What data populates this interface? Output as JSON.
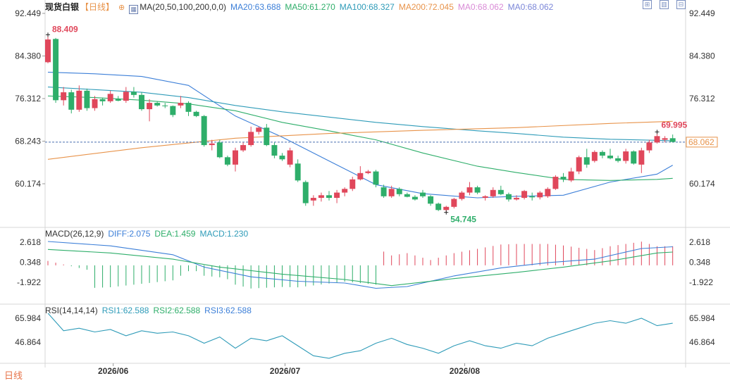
{
  "header": {
    "title": "现货白银",
    "period": "【日线】",
    "indicator_label": "MA(20,50,100,200,0,0)",
    "ma_values": [
      {
        "text": "MA20:63.688",
        "color": "#3c7fd8"
      },
      {
        "text": "MA50:61.270",
        "color": "#2eae6a"
      },
      {
        "text": "MA100:68.327",
        "color": "#2e9bb8"
      },
      {
        "text": "MA200:72.045",
        "color": "#e8934a"
      },
      {
        "text": "MA0:68.062",
        "color": "#d98ad6"
      },
      {
        "text": "MA0:68.062",
        "color": "#7b86d8"
      }
    ]
  },
  "macd": {
    "label": "MACD(26,12,9)",
    "values": [
      {
        "text": "DIFF:2.075",
        "color": "#3c7fd8"
      },
      {
        "text": "DEA:1.459",
        "color": "#2eae6a"
      },
      {
        "text": "MACD:1.230",
        "color": "#2e9bb8"
      }
    ],
    "ticks": [
      "2.618",
      "0.348",
      "-1.922"
    ]
  },
  "rsi": {
    "label": "RSI(14,14,14)",
    "values": [
      {
        "text": "RSI1:62.588",
        "color": "#2e9bb8"
      },
      {
        "text": "RSI2:62.588",
        "color": "#2eae6a"
      },
      {
        "text": "RSI3:62.588",
        "color": "#3c7fd8"
      }
    ],
    "ticks": [
      "65.984",
      "46.864"
    ]
  },
  "bottom_tab": "日线",
  "chart_data": {
    "type": "candlestick",
    "y_ticks": [
      "92.449",
      "84.380",
      "76.312",
      "68.243",
      "60.174"
    ],
    "x_labels": [
      "2026/06",
      "2026/07",
      "2026/08"
    ],
    "current_price": "68.062",
    "high_annotation": "88.409",
    "low_annotation": "54.745",
    "last_high_annotation": "69.995",
    "colors": {
      "up": "#e0475b",
      "down": "#2eae6a",
      "high_label": "#e0475b",
      "low_label": "#2eae6a",
      "price_tag": "#e8934a"
    },
    "candles": [
      [
        83.2,
        88.4,
        83.0,
        87.5
      ],
      [
        87.6,
        87.8,
        75.5,
        76.0
      ],
      [
        76.0,
        78.5,
        75.0,
        77.5
      ],
      [
        77.5,
        78.0,
        73.5,
        74.2
      ],
      [
        74.2,
        78.8,
        73.8,
        77.8
      ],
      [
        77.8,
        78.2,
        74.0,
        74.5
      ],
      [
        74.5,
        76.8,
        74.0,
        76.2
      ],
      [
        76.2,
        76.5,
        75.0,
        75.8
      ],
      [
        75.8,
        77.8,
        75.5,
        77.2
      ],
      [
        76.2,
        76.8,
        75.8,
        75.9
      ],
      [
        75.9,
        78.5,
        75.5,
        77.6
      ],
      [
        77.6,
        78.5,
        76.5,
        77.0
      ],
      [
        77.0,
        77.5,
        74.0,
        74.3
      ],
      [
        74.3,
        76.2,
        72.0,
        75.5
      ],
      [
        75.5,
        75.8,
        74.8,
        75.0
      ],
      [
        75.0,
        75.5,
        74.5,
        74.9
      ],
      [
        74.9,
        75.0,
        72.8,
        73.2
      ],
      [
        75.0,
        76.8,
        74.5,
        75.5
      ],
      [
        75.5,
        75.8,
        73.0,
        73.8
      ],
      [
        73.8,
        74.0,
        72.8,
        73.0
      ],
      [
        73.0,
        73.2,
        67.2,
        67.5
      ],
      [
        67.5,
        68.5,
        66.5,
        67.8
      ],
      [
        68.0,
        68.5,
        65.0,
        65.2
      ],
      [
        65.2,
        65.5,
        63.5,
        63.8
      ],
      [
        63.8,
        67.0,
        62.5,
        66.5
      ],
      [
        66.5,
        68.0,
        66.2,
        67.5
      ],
      [
        67.5,
        71.0,
        67.2,
        70.0
      ],
      [
        70.0,
        71.0,
        69.5,
        70.8
      ],
      [
        70.8,
        71.5,
        67.3,
        67.5
      ],
      [
        67.5,
        68.0,
        65.0,
        65.5
      ],
      [
        65.5,
        66.0,
        64.5,
        64.8
      ],
      [
        63.8,
        67.0,
        63.3,
        66.5
      ],
      [
        64.0,
        64.8,
        60.5,
        60.8
      ],
      [
        60.5,
        60.8,
        56.0,
        56.5
      ],
      [
        57.0,
        58.0,
        56.0,
        57.5
      ],
      [
        57.5,
        58.5,
        56.8,
        58.0
      ],
      [
        58.0,
        58.8,
        57.0,
        57.5
      ],
      [
        57.5,
        59.0,
        56.5,
        58.5
      ],
      [
        58.5,
        59.5,
        57.8,
        59.2
      ],
      [
        59.2,
        61.5,
        58.8,
        61.0
      ],
      [
        61.0,
        63.5,
        60.8,
        62.2
      ],
      [
        62.2,
        62.8,
        62.0,
        62.5
      ],
      [
        62.5,
        62.8,
        59.5,
        60.0
      ],
      [
        59.5,
        60.0,
        57.5,
        57.8
      ],
      [
        57.8,
        59.8,
        57.5,
        59.2
      ],
      [
        59.2,
        59.5,
        57.8,
        58.2
      ],
      [
        58.2,
        58.5,
        57.6,
        57.7
      ],
      [
        57.7,
        58.0,
        57.0,
        57.2
      ],
      [
        58.5,
        59.0,
        57.5,
        57.8
      ],
      [
        57.8,
        58.0,
        56.0,
        56.4
      ],
      [
        56.4,
        56.6,
        55.0,
        55.2
      ],
      [
        55.2,
        56.0,
        54.7,
        55.8
      ],
      [
        55.8,
        57.5,
        55.5,
        57.3
      ],
      [
        57.3,
        58.8,
        57.0,
        58.5
      ],
      [
        58.5,
        60.5,
        58.0,
        59.5
      ],
      [
        59.5,
        59.8,
        58.2,
        58.5
      ],
      [
        57.5,
        58.0,
        57.0,
        57.8
      ],
      [
        57.8,
        59.5,
        57.5,
        59.0
      ],
      [
        59.0,
        59.8,
        58.0,
        58.2
      ],
      [
        58.2,
        58.5,
        56.8,
        57.2
      ],
      [
        57.2,
        58.0,
        57.0,
        57.5
      ],
      [
        57.5,
        59.0,
        57.2,
        58.8
      ],
      [
        57.8,
        58.5,
        57.0,
        57.6
      ],
      [
        57.6,
        58.8,
        57.2,
        58.5
      ],
      [
        57.8,
        59.5,
        57.5,
        59.2
      ],
      [
        59.2,
        61.8,
        59.0,
        61.5
      ],
      [
        61.5,
        62.2,
        60.5,
        61.0
      ],
      [
        60.8,
        63.2,
        60.5,
        62.5
      ],
      [
        62.5,
        65.5,
        62.0,
        65.2
      ],
      [
        65.2,
        66.8,
        63.2,
        63.8
      ],
      [
        64.5,
        66.5,
        64.2,
        66.2
      ],
      [
        66.2,
        66.5,
        65.0,
        65.5
      ],
      [
        65.5,
        66.8,
        64.8,
        65.0
      ],
      [
        65.0,
        65.5,
        64.2,
        64.5
      ],
      [
        64.5,
        66.8,
        64.0,
        66.3
      ],
      [
        66.3,
        66.5,
        63.8,
        64.0
      ],
      [
        63.8,
        67.0,
        62.2,
        66.5
      ],
      [
        66.5,
        68.5,
        66.0,
        68.0
      ],
      [
        68.0,
        70.0,
        67.8,
        69.2
      ],
      [
        68.5,
        69.2,
        68.0,
        68.8
      ],
      [
        68.8,
        69.5,
        68.0,
        68.1
      ]
    ],
    "ma_overlays": [
      {
        "name": "MA20",
        "color": "#3c7fd8",
        "points": [
          [
            0,
            81.3
          ],
          [
            6,
            81.0
          ],
          [
            12,
            80.5
          ],
          [
            18,
            78.8
          ],
          [
            24,
            73.0
          ],
          [
            30,
            69.0
          ],
          [
            36,
            64.5
          ],
          [
            42,
            60.0
          ],
          [
            48,
            58.3
          ],
          [
            55,
            57.5
          ],
          [
            60,
            57.8
          ],
          [
            66,
            58.0
          ],
          [
            72,
            60.5
          ],
          [
            78,
            62.0
          ],
          [
            80,
            63.7
          ]
        ]
      },
      {
        "name": "MA50",
        "color": "#2eae6a",
        "points": [
          [
            0,
            76.8
          ],
          [
            6,
            76.5
          ],
          [
            12,
            76.0
          ],
          [
            18,
            75.3
          ],
          [
            24,
            74.0
          ],
          [
            30,
            71.8
          ],
          [
            36,
            70.2
          ],
          [
            42,
            68.5
          ],
          [
            48,
            66.0
          ],
          [
            55,
            63.5
          ],
          [
            60,
            62.3
          ],
          [
            66,
            61.0
          ],
          [
            72,
            60.8
          ],
          [
            78,
            61.0
          ],
          [
            80,
            61.2
          ]
        ]
      },
      {
        "name": "MA100",
        "color": "#2e9bb8",
        "points": [
          [
            0,
            78.5
          ],
          [
            6,
            78.0
          ],
          [
            12,
            77.5
          ],
          [
            18,
            76.5
          ],
          [
            24,
            75.0
          ],
          [
            30,
            73.8
          ],
          [
            36,
            72.8
          ],
          [
            42,
            71.8
          ],
          [
            48,
            71.0
          ],
          [
            55,
            70.2
          ],
          [
            60,
            69.7
          ],
          [
            66,
            69.0
          ],
          [
            72,
            68.6
          ],
          [
            78,
            68.4
          ],
          [
            80,
            68.3
          ]
        ]
      },
      {
        "name": "MA200",
        "color": "#e8934a",
        "points": [
          [
            0,
            64.8
          ],
          [
            12,
            67.0
          ],
          [
            24,
            68.8
          ],
          [
            36,
            69.7
          ],
          [
            48,
            70.3
          ],
          [
            60,
            70.8
          ],
          [
            72,
            71.6
          ],
          [
            80,
            72.0
          ]
        ]
      }
    ],
    "macd_series": {
      "diff": [
        [
          0,
          2.7
        ],
        [
          8,
          2.2
        ],
        [
          16,
          1.2
        ],
        [
          20,
          -0.2
        ],
        [
          26,
          -1.3
        ],
        [
          32,
          -1.8
        ],
        [
          38,
          -2.0
        ],
        [
          42,
          -2.6
        ],
        [
          46,
          -2.4
        ],
        [
          52,
          -1.2
        ],
        [
          58,
          -0.3
        ],
        [
          64,
          0.3
        ],
        [
          70,
          0.7
        ],
        [
          76,
          1.9
        ],
        [
          80,
          2.1
        ]
      ],
      "dea": [
        [
          0,
          1.8
        ],
        [
          8,
          1.4
        ],
        [
          16,
          0.7
        ],
        [
          22,
          -0.2
        ],
        [
          30,
          -1.0
        ],
        [
          38,
          -1.6
        ],
        [
          44,
          -2.3
        ],
        [
          52,
          -1.5
        ],
        [
          60,
          -0.8
        ],
        [
          66,
          -0.2
        ],
        [
          72,
          0.5
        ],
        [
          78,
          1.4
        ],
        [
          80,
          1.5
        ]
      ],
      "hist_range": [
        -3,
        3
      ]
    },
    "rsi_series": [
      [
        0,
        70
      ],
      [
        2,
        56
      ],
      [
        4,
        58
      ],
      [
        6,
        55
      ],
      [
        8,
        57
      ],
      [
        10,
        52
      ],
      [
        12,
        56
      ],
      [
        14,
        54
      ],
      [
        16,
        55
      ],
      [
        18,
        52
      ],
      [
        20,
        46
      ],
      [
        22,
        51
      ],
      [
        24,
        42
      ],
      [
        26,
        50
      ],
      [
        28,
        48
      ],
      [
        30,
        52
      ],
      [
        32,
        44
      ],
      [
        34,
        36
      ],
      [
        36,
        34
      ],
      [
        38,
        38
      ],
      [
        40,
        40
      ],
      [
        42,
        46
      ],
      [
        44,
        50
      ],
      [
        46,
        45
      ],
      [
        48,
        42
      ],
      [
        50,
        38
      ],
      [
        52,
        44
      ],
      [
        54,
        48
      ],
      [
        56,
        44
      ],
      [
        58,
        42
      ],
      [
        60,
        46
      ],
      [
        62,
        44
      ],
      [
        64,
        50
      ],
      [
        66,
        54
      ],
      [
        68,
        58
      ],
      [
        70,
        62
      ],
      [
        72,
        64
      ],
      [
        74,
        62
      ],
      [
        76,
        66
      ],
      [
        78,
        60
      ],
      [
        80,
        62
      ]
    ]
  }
}
